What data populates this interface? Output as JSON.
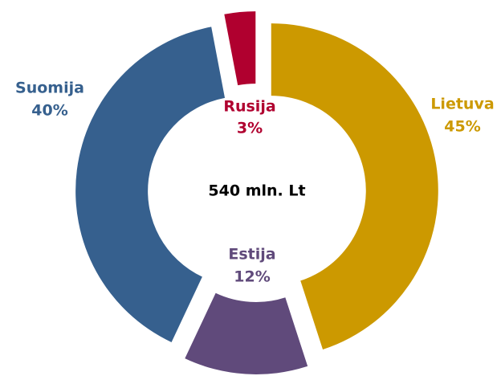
{
  "chart_data": {
    "type": "pie",
    "center_label": "540 mln. Lt",
    "categories": [
      "Lietuva",
      "Estija",
      "Suomija",
      "Rusija"
    ],
    "values": [
      45,
      12,
      40,
      3
    ],
    "value_labels": [
      "45%",
      "12%",
      "40%",
      "3%"
    ],
    "colors": [
      "#cc9900",
      "#604a7b",
      "#36608e",
      "#b0002f"
    ]
  }
}
